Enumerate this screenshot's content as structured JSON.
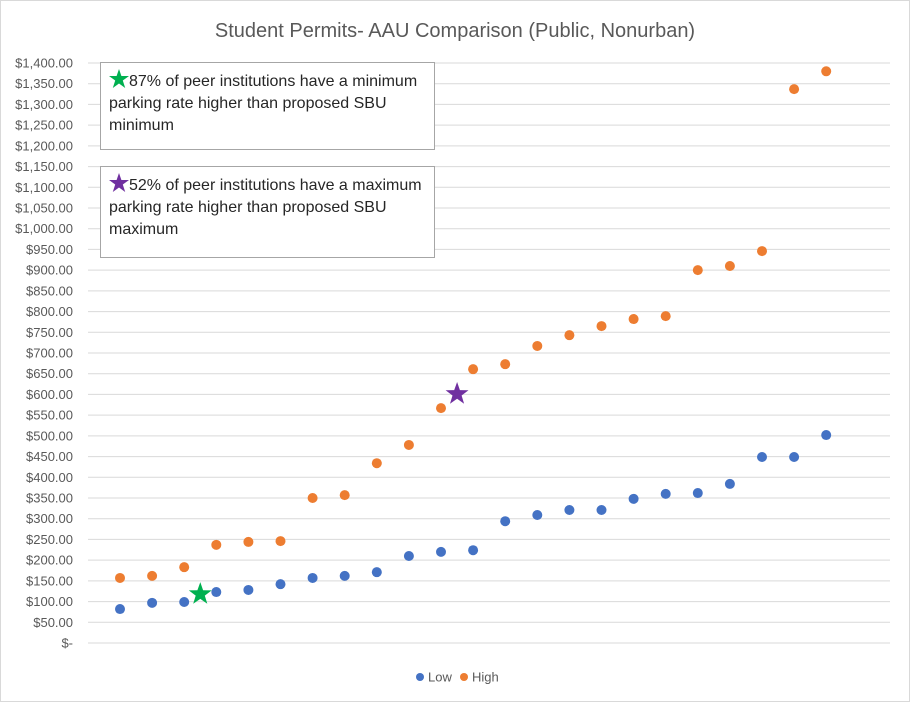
{
  "chart_data": {
    "type": "scatter",
    "title": "Student Permits- AAU Comparison (Public, Nonurban)",
    "xlabel": "",
    "ylabel": "",
    "ylim": [
      0,
      1400
    ],
    "ytick_step": 50,
    "yticks": [
      "$-",
      "$50.00",
      "$100.00",
      "$150.00",
      "$200.00",
      "$250.00",
      "$300.00",
      "$350.00",
      "$400.00",
      "$450.00",
      "$500.00",
      "$550.00",
      "$600.00",
      "$650.00",
      "$700.00",
      "$750.00",
      "$800.00",
      "$850.00",
      "$900.00",
      "$950.00",
      "$1,000.00",
      "$1,050.00",
      "$1,100.00",
      "$1,150.00",
      "$1,200.00",
      "$1,250.00",
      "$1,300.00",
      "$1,350.00",
      "$1,400.00"
    ],
    "grid": true,
    "legend_position": "bottom",
    "x": [
      1,
      2,
      3,
      4,
      5,
      6,
      7,
      8,
      9,
      10,
      11,
      12,
      13,
      14,
      15,
      16,
      17,
      18,
      19,
      20,
      21,
      22,
      23
    ],
    "series": [
      {
        "name": "Low",
        "color": "#4472c4",
        "values": [
          82,
          97,
          99,
          123,
          128,
          142,
          157,
          162,
          171,
          210,
          220,
          224,
          294,
          309,
          321,
          321,
          348,
          360,
          362,
          384,
          449,
          449,
          502
        ]
      },
      {
        "name": "High",
        "color": "#ed7d31",
        "values": [
          157,
          162,
          183,
          237,
          244,
          246,
          350,
          357,
          434,
          478,
          567,
          661,
          673,
          717,
          743,
          765,
          782,
          789,
          900,
          910,
          946,
          1337,
          1380
        ]
      }
    ],
    "markers": [
      {
        "name": "proposed SBU minimum",
        "x": 3.5,
        "y": 118,
        "color": "#00b050",
        "shape": "star"
      },
      {
        "name": "proposed SBU maximum",
        "x": 11.5,
        "y": 601,
        "color": "#7030a0",
        "shape": "star"
      }
    ],
    "annotations": [
      {
        "text": "87% of peer institutions have a minimum parking rate higher than proposed SBU minimum",
        "color": "#00b050"
      },
      {
        "text": "52% of peer institutions have a maximum parking rate higher than proposed SBU maximum",
        "color": "#7030a0"
      }
    ]
  }
}
